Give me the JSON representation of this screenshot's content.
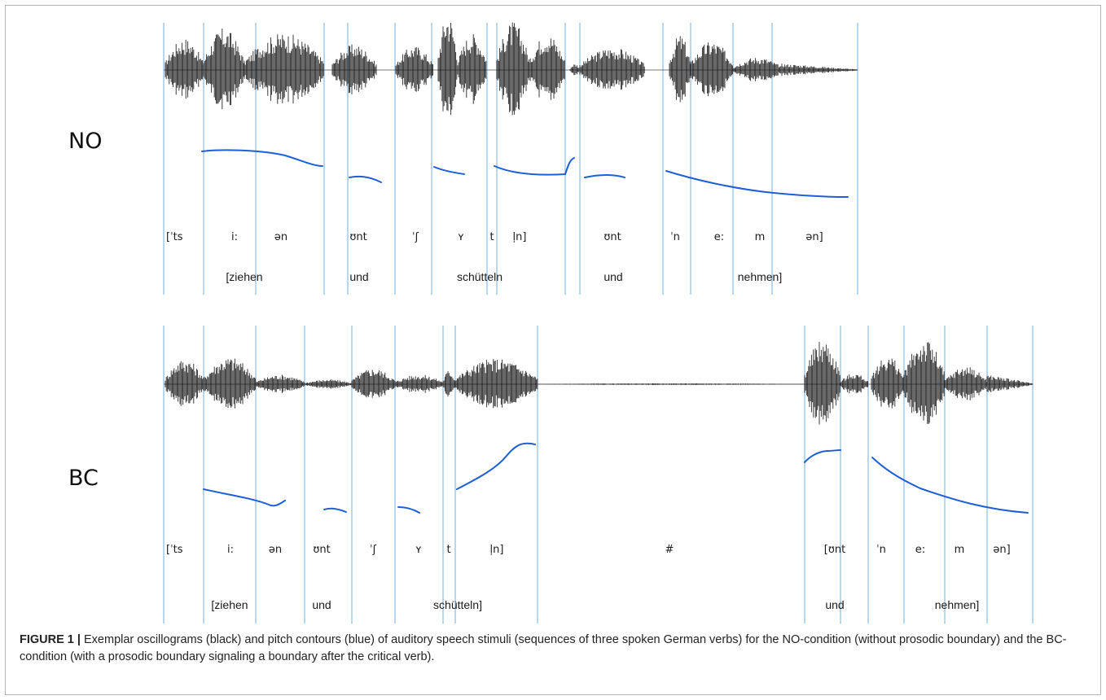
{
  "panels": [
    {
      "id": "no",
      "condition_label": "NO",
      "phones": [
        "[ˈts",
        "i:",
        "ən",
        "ʊnt",
        "ˈʃ",
        "ʏ",
        "t",
        "l̩n]",
        "ʊnt",
        "ˈn",
        "e:",
        "m",
        "ən]"
      ],
      "words": [
        "[ziehen",
        "und",
        "schütteln",
        "und",
        "nehmen]"
      ]
    },
    {
      "id": "bc",
      "condition_label": "BC",
      "phones": [
        "[ˈts",
        "i:",
        "ən",
        "ʊnt",
        "ˈʃ",
        "ʏ",
        "t",
        "l̩n]",
        "#",
        "[ʊnt",
        "ˈn",
        "e:",
        "m",
        "ən]"
      ],
      "words": [
        "[ziehen",
        "und",
        "schütteln]",
        "und",
        "nehmen]"
      ]
    }
  ],
  "colors": {
    "waveform": "#111111",
    "pitch": "#1f5fd6",
    "boundary": "#9cc3e6"
  },
  "caption": {
    "lead": "FIGURE 1 |",
    "text": "Exemplar oscillograms (black) and pitch contours (blue) of auditory speech stimuli (sequences of three spoken German verbs) for the NO-condition (without prosodic boundary) and the BC-condition (with a prosodic boundary signaling a boundary after the critical verb)."
  }
}
